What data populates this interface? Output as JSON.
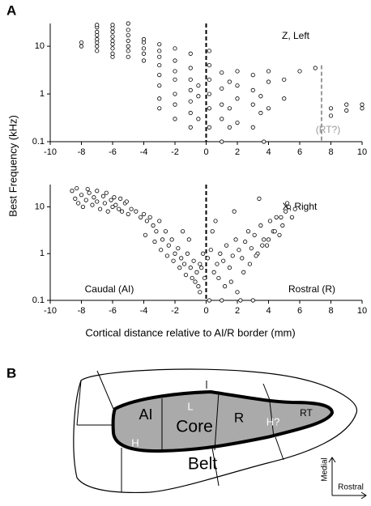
{
  "panels": [
    "A",
    "B"
  ],
  "chart_data": [
    {
      "type": "scatter",
      "log_y": true,
      "ylabel": "Best Frequency (kHz)",
      "annotations": [
        "Z, Left",
        "(RT?)"
      ],
      "xlim": [
        -10,
        10
      ],
      "xticks": [
        -10,
        -8,
        -6,
        -4,
        -2,
        0,
        2,
        4,
        6,
        8,
        10
      ],
      "ylim": [
        0.1,
        30
      ],
      "yticks": [
        0.1,
        1,
        10
      ],
      "ref_lines": [
        {
          "x": 0,
          "color": "#000000",
          "ymax": 30
        },
        {
          "x": 7.4,
          "color": "#999999",
          "ymax": 4
        }
      ],
      "color": "#000000",
      "x": [
        -8,
        -8,
        -7,
        -7,
        -7,
        -7,
        -7,
        -7,
        -7,
        -7,
        -6,
        -6,
        -6,
        -6,
        -6,
        -6,
        -6,
        -6,
        -6,
        -5,
        -5,
        -5,
        -5,
        -5,
        -5,
        -5,
        -4,
        -4,
        -4,
        -4,
        -4,
        -3,
        -3,
        -3,
        -3,
        -3,
        -3,
        -3,
        -3,
        -2,
        -2,
        -2,
        -2,
        -2,
        -2,
        -2,
        -1,
        -1,
        -1,
        -1,
        -1,
        -1,
        -1,
        -0.5,
        -0.5,
        -0.5,
        0.2,
        0.2,
        0.2,
        0.2,
        0.2,
        0.2,
        1,
        1,
        1,
        1,
        1.5,
        1.5,
        1.5,
        2,
        2,
        2,
        2,
        3,
        3,
        3,
        3,
        3.5,
        3.5,
        4,
        4,
        4,
        5,
        5,
        6,
        7,
        8,
        8,
        9,
        9,
        10,
        10,
        1,
        3.7
      ],
      "values": [
        10,
        12,
        8,
        10,
        12,
        14,
        17,
        20,
        25,
        28,
        6,
        7,
        9,
        11,
        13,
        16,
        20,
        24,
        28,
        6,
        8,
        10,
        13,
        17,
        22,
        30,
        5,
        7,
        9,
        12,
        14,
        0.5,
        0.8,
        1.5,
        2.5,
        4,
        6,
        8,
        11,
        0.3,
        0.6,
        1,
        2,
        3,
        5,
        9,
        0.2,
        0.4,
        0.7,
        1.2,
        2,
        3.5,
        7,
        0.3,
        0.9,
        1.5,
        0.2,
        0.5,
        1,
        2,
        4,
        8,
        0.3,
        0.6,
        1.3,
        2.8,
        0.2,
        0.5,
        1.8,
        0.25,
        0.8,
        1.5,
        3,
        0.2,
        0.6,
        1.2,
        2.5,
        0.4,
        0.9,
        0.5,
        1.8,
        3,
        0.8,
        2,
        3,
        3.5,
        0.35,
        0.5,
        0.45,
        0.6,
        0.5,
        0.6,
        0.1,
        0.1
      ]
    },
    {
      "type": "scatter",
      "log_y": true,
      "xlabel": "Cortical distance relative to AI/R border (mm)",
      "annotations": [
        "X, Right",
        "Caudal (AI)",
        "Rostral (R)"
      ],
      "xlim": [
        -10,
        10
      ],
      "xticks": [
        -10,
        -8,
        -6,
        -4,
        -2,
        0,
        2,
        4,
        6,
        8,
        10
      ],
      "ylim": [
        0.1,
        30
      ],
      "yticks": [
        0.1,
        1,
        10
      ],
      "ref_lines": [
        {
          "x": 0,
          "color": "#000000",
          "ymax": 30
        }
      ],
      "color": "#000000",
      "x": [
        -8.6,
        -8.4,
        -8.2,
        -8,
        -7.9,
        -7.7,
        -7.5,
        -7.3,
        -7.2,
        -7,
        -6.8,
        -6.6,
        -6.5,
        -6.3,
        -6.1,
        -6,
        -5.8,
        -5.6,
        -5.4,
        -5.2,
        -5,
        -4.8,
        -8.3,
        -7.6,
        -7,
        -6.4,
        -5.9,
        -5.5,
        -5.1,
        -4.5,
        -4.2,
        -4,
        -3.8,
        -3.6,
        -3.4,
        -3.2,
        -3,
        -2.8,
        -2.6,
        -2.4,
        -2.2,
        -2,
        -1.8,
        -1.6,
        -1.4,
        -1.2,
        -1,
        -0.8,
        -0.6,
        -0.4,
        -0.2,
        -3.9,
        -3.3,
        -2.9,
        -2.5,
        -2.1,
        -1.7,
        -1.3,
        -0.9,
        -0.5,
        -0.1,
        -1.5,
        -1.1,
        -0.7,
        -0.3,
        0.1,
        0.3,
        0.5,
        0.7,
        0.9,
        1.1,
        1.3,
        1.5,
        1.7,
        1.9,
        2.1,
        2.3,
        2.5,
        2.7,
        2.9,
        3.1,
        3.3,
        3.5,
        3.7,
        3.9,
        4.1,
        4.3,
        4.5,
        4.7,
        4.9,
        5.1,
        5.3,
        5.5,
        5.7,
        0.4,
        0.8,
        1.2,
        1.6,
        2,
        2.4,
        2.8,
        3.2,
        3.6,
        4,
        4.4,
        4.8,
        5.2,
        0.2,
        1,
        2.2,
        3,
        -0.4,
        0.6,
        1.8,
        3.4
      ],
      "values": [
        22,
        15,
        12,
        18,
        10,
        14,
        20,
        11,
        16,
        13,
        9,
        17,
        12,
        8,
        14,
        10,
        11,
        9,
        8,
        12,
        7,
        9,
        25,
        24,
        22,
        20,
        16,
        15,
        13,
        8,
        6,
        7,
        5,
        6,
        4,
        3,
        5,
        2,
        3,
        1.5,
        2,
        1,
        1.3,
        0.8,
        0.6,
        1,
        0.5,
        0.7,
        0.4,
        0.6,
        1,
        2.5,
        1.8,
        1.2,
        0.9,
        0.7,
        0.5,
        0.35,
        0.3,
        0.2,
        0.3,
        3,
        2,
        0.25,
        0.5,
        0.8,
        1.2,
        0.4,
        0.6,
        1,
        0.7,
        1.5,
        0.5,
        0.9,
        2,
        1.2,
        0.8,
        1.8,
        3,
        1.3,
        2.5,
        1,
        4,
        2,
        1.5,
        5,
        3,
        6,
        2.5,
        4,
        8,
        10,
        6,
        9,
        3,
        0.3,
        0.2,
        0.25,
        0.15,
        0.4,
        0.6,
        0.9,
        1.5,
        2,
        3,
        6,
        12,
        0.1,
        0.1,
        0.1,
        0.1,
        0.15,
        5,
        8,
        15
      ]
    }
  ],
  "diagram": {
    "labels": [
      "AI",
      "Core",
      "R",
      "L",
      "H",
      "H?",
      "RT",
      "Belt",
      "Medial",
      "Rostral"
    ]
  }
}
